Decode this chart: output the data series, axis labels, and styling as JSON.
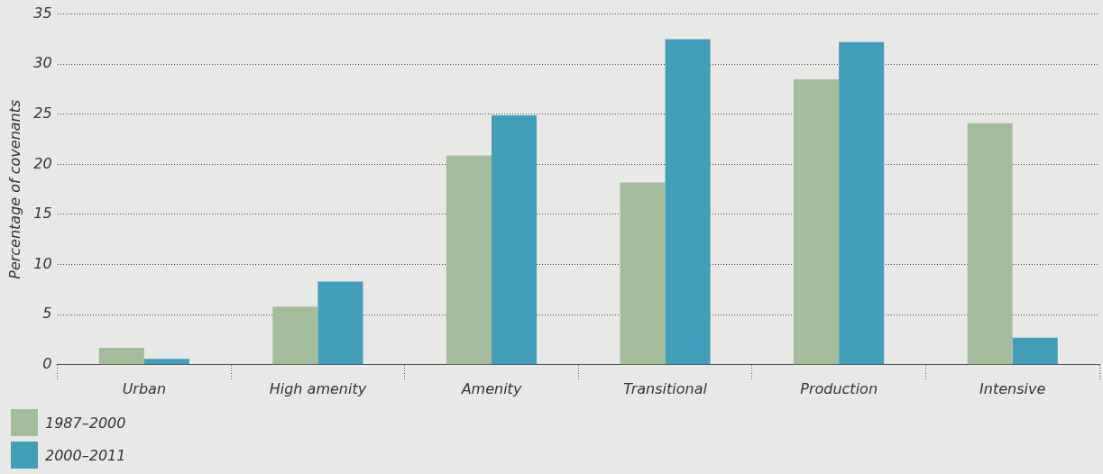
{
  "chart_data": {
    "type": "bar",
    "ylabel": "Percentage of covenants",
    "categories": [
      "Urban",
      "High amenity",
      "Amenity",
      "Transitional",
      "Production",
      "Intensive"
    ],
    "series": [
      {
        "name": "1987–2000",
        "color": "#a3bd9c",
        "values": [
          1.7,
          5.8,
          20.9,
          18.2,
          28.5,
          24.1
        ]
      },
      {
        "name": "2000–2011",
        "color": "#429fba",
        "values": [
          0.6,
          8.3,
          24.9,
          32.5,
          32.2,
          2.7
        ]
      }
    ],
    "ylim": [
      0,
      35
    ],
    "yticks": [
      0,
      5,
      10,
      15,
      20,
      25,
      30,
      35
    ],
    "grid": "y",
    "legend": "bottom left"
  }
}
